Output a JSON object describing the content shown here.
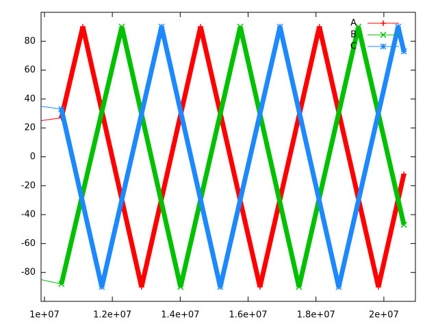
{
  "chart_data": {
    "type": "line",
    "xlim": [
      9900000,
      20930000
    ],
    "ylim": [
      -100,
      100
    ],
    "xticks": [
      {
        "value": 10000000,
        "label": "1e+07"
      },
      {
        "value": 12000000,
        "label": "1.2e+07"
      },
      {
        "value": 14000000,
        "label": "1.4e+07"
      },
      {
        "value": 16000000,
        "label": "1.6e+07"
      },
      {
        "value": 18000000,
        "label": "1.8e+07"
      },
      {
        "value": 20000000,
        "label": "2e+07"
      }
    ],
    "yticks": [
      -80,
      -60,
      -40,
      -20,
      0,
      20,
      40,
      60,
      80
    ],
    "legend": "top-right",
    "series": [
      {
        "name": "A",
        "color": "#ff0000",
        "marker": "plus",
        "x": [
          9900000,
          10500000,
          11130000,
          12860000,
          14600000,
          16350000,
          18100000,
          19840000,
          20590000
        ],
        "values": [
          25,
          27,
          90,
          -90,
          90,
          -90,
          90,
          -90,
          -12
        ]
      },
      {
        "name": "B",
        "color": "#00c000",
        "marker": "cross",
        "x": [
          9900000,
          10500000,
          12280000,
          14010000,
          15770000,
          17500000,
          19250000,
          20590000
        ],
        "values": [
          -85,
          -88,
          90,
          -90,
          90,
          -90,
          90,
          -47
        ]
      },
      {
        "name": "C",
        "color": "#1e88ff",
        "marker": "star",
        "x": [
          9900000,
          10500000,
          11690000,
          13450000,
          15180000,
          16940000,
          18670000,
          20420000,
          20590000
        ],
        "values": [
          35,
          33,
          -90,
          90,
          -90,
          90,
          -90,
          90,
          73
        ]
      }
    ]
  }
}
